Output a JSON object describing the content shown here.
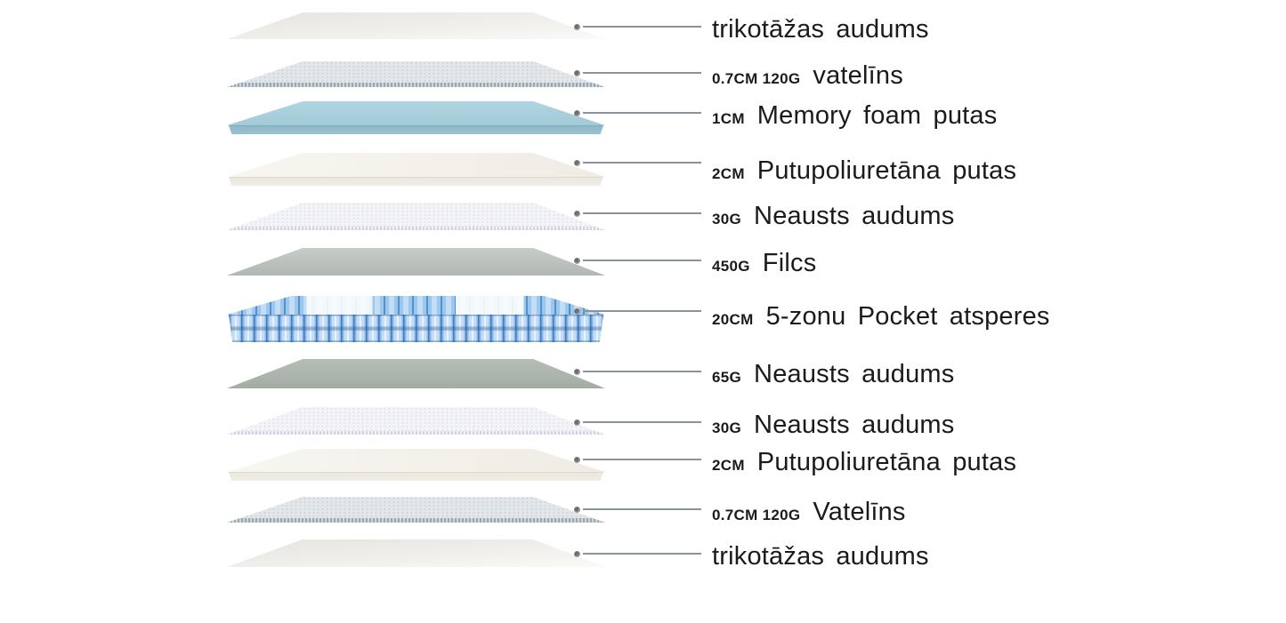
{
  "diagram": {
    "subject": "mattress-layer-structure",
    "background_color": "#ffffff",
    "text_color": "#1b1b1b",
    "leader_line_color": "#8b9298"
  },
  "colors": {
    "knit_fabric": "#efeeea",
    "wadding": "#e3e7ea",
    "memory_foam": "#a9d0dd",
    "pu_foam": "#f2f0e9",
    "nonwoven": "#f4f4f8",
    "felt_450g": "#bcc2be",
    "felt_65g": "#acb4ae",
    "pocket_springs_blue": "#6aaade",
    "pocket_springs_white_zone": "#f8fbfe"
  },
  "layers": [
    {
      "size": "",
      "name": "trikotāžas audums",
      "material": "knit-fabric"
    },
    {
      "size": "0.7CM 120G",
      "name": "vatelīns",
      "material": "wadding"
    },
    {
      "size": "1CM",
      "name": "Memory foam putas",
      "material": "memory-foam"
    },
    {
      "size": "2CM",
      "name": "Putupoliuretāna putas",
      "material": "pu-foam"
    },
    {
      "size": "30G",
      "name": "Neausts audums",
      "material": "nonwoven"
    },
    {
      "size": "450G",
      "name": "Filcs",
      "material": "felt"
    },
    {
      "size": "20CM",
      "name": "5-zonu Pocket atsperes",
      "material": "pocket-springs"
    },
    {
      "size": "65G",
      "name": "Neausts audums",
      "material": "felt-nonwoven"
    },
    {
      "size": "30G",
      "name": "Neausts audums",
      "material": "nonwoven"
    },
    {
      "size": "2CM",
      "name": "Putupoliuretāna putas",
      "material": "pu-foam"
    },
    {
      "size": "0.7CM 120G",
      "name": "Vatelīns",
      "material": "wadding"
    },
    {
      "size": "",
      "name": "trikotāžas audums",
      "material": "knit-fabric"
    }
  ]
}
